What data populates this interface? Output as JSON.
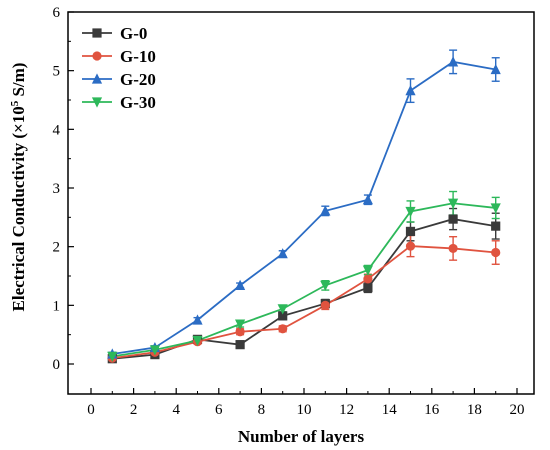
{
  "chart_data": {
    "type": "line",
    "title": "",
    "xlabel": "Number of layers",
    "ylabel_main": "Electrical Conductivity (×10",
    "ylabel_exp": "5",
    "ylabel_unit": " S/m)",
    "xlim": [
      0,
      20
    ],
    "ylim": [
      0,
      6
    ],
    "xticks": [
      "0",
      "2",
      "4",
      "6",
      "8",
      "10",
      "12",
      "14",
      "16",
      "18",
      "20"
    ],
    "yticks": [
      "0",
      "1",
      "2",
      "3",
      "4",
      "5",
      "6"
    ],
    "grid": false,
    "legend_position": "top-left",
    "x": [
      1,
      3,
      5,
      7,
      9,
      11,
      13,
      15,
      17,
      19
    ],
    "series": [
      {
        "name": "G-0",
        "color": "#3a3a3a",
        "marker": "square",
        "values": [
          0.09,
          0.16,
          0.42,
          0.33,
          0.82,
          1.03,
          1.3,
          2.26,
          2.47,
          2.35
        ],
        "errors": [
          0.03,
          0.03,
          0.04,
          0.04,
          0.05,
          0.07,
          0.08,
          0.16,
          0.18,
          0.22
        ]
      },
      {
        "name": "G-10",
        "color": "#e0533f",
        "marker": "circle",
        "values": [
          0.1,
          0.2,
          0.38,
          0.55,
          0.6,
          1.0,
          1.45,
          2.01,
          1.97,
          1.9
        ],
        "errors": [
          0.03,
          0.03,
          0.04,
          0.05,
          0.05,
          0.07,
          0.08,
          0.18,
          0.2,
          0.2
        ]
      },
      {
        "name": "G-20",
        "color": "#2b6cc4",
        "marker": "triangle-up",
        "values": [
          0.17,
          0.28,
          0.75,
          1.34,
          1.88,
          2.61,
          2.8,
          4.66,
          5.15,
          5.02
        ],
        "errors": [
          0.03,
          0.03,
          0.04,
          0.04,
          0.05,
          0.08,
          0.08,
          0.2,
          0.2,
          0.2
        ]
      },
      {
        "name": "G-30",
        "color": "#2db85a",
        "marker": "triangle-down",
        "values": [
          0.13,
          0.24,
          0.4,
          0.68,
          0.94,
          1.34,
          1.6,
          2.6,
          2.74,
          2.66
        ],
        "errors": [
          0.03,
          0.03,
          0.04,
          0.05,
          0.05,
          0.08,
          0.08,
          0.18,
          0.2,
          0.18
        ]
      }
    ]
  }
}
